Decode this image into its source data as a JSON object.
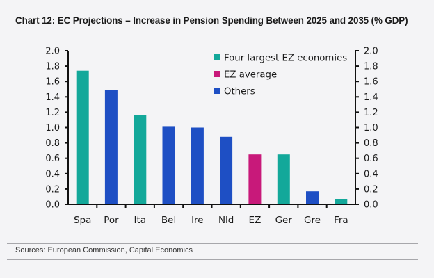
{
  "title": "Chart 12: EC Projections – Increase in Pension Spending Between 2025 and 2035 (% GDP)",
  "source": "Sources:  European Commission, Capital Economics",
  "colors": {
    "four_largest": "#13a89a",
    "ez_average": "#c8197a",
    "others": "#1e4fc4",
    "axis": "#111111"
  },
  "chart_data": {
    "type": "bar",
    "title": "Chart 12: EC Projections – Increase in Pension Spending Between 2025 and 2035 (% GDP)",
    "xlabel": "",
    "ylabel": "",
    "ylim": [
      0,
      2.0
    ],
    "yticks": [
      "0.0",
      "0.2",
      "0.4",
      "0.6",
      "0.8",
      "1.0",
      "1.2",
      "1.4",
      "1.6",
      "1.8",
      "2.0"
    ],
    "ytick_values": [
      0,
      0.2,
      0.4,
      0.6,
      0.8,
      1.0,
      1.2,
      1.4,
      1.6,
      1.8,
      2.0
    ],
    "axes": "left-and-right",
    "grid": false,
    "legend_position": "top-right",
    "categories": [
      "Spa",
      "Por",
      "Ita",
      "Bel",
      "Ire",
      "Nld",
      "EZ",
      "Ger",
      "Gre",
      "Fra"
    ],
    "values": [
      1.74,
      1.49,
      1.16,
      1.01,
      1.0,
      0.88,
      0.65,
      0.65,
      0.17,
      0.07
    ],
    "groups": [
      "four_largest",
      "others",
      "four_largest",
      "others",
      "others",
      "others",
      "ez_average",
      "four_largest",
      "others",
      "four_largest"
    ],
    "legend": [
      {
        "key": "four_largest",
        "label": "Four largest EZ economies"
      },
      {
        "key": "ez_average",
        "label": "EZ average"
      },
      {
        "key": "others",
        "label": "Others"
      }
    ]
  }
}
